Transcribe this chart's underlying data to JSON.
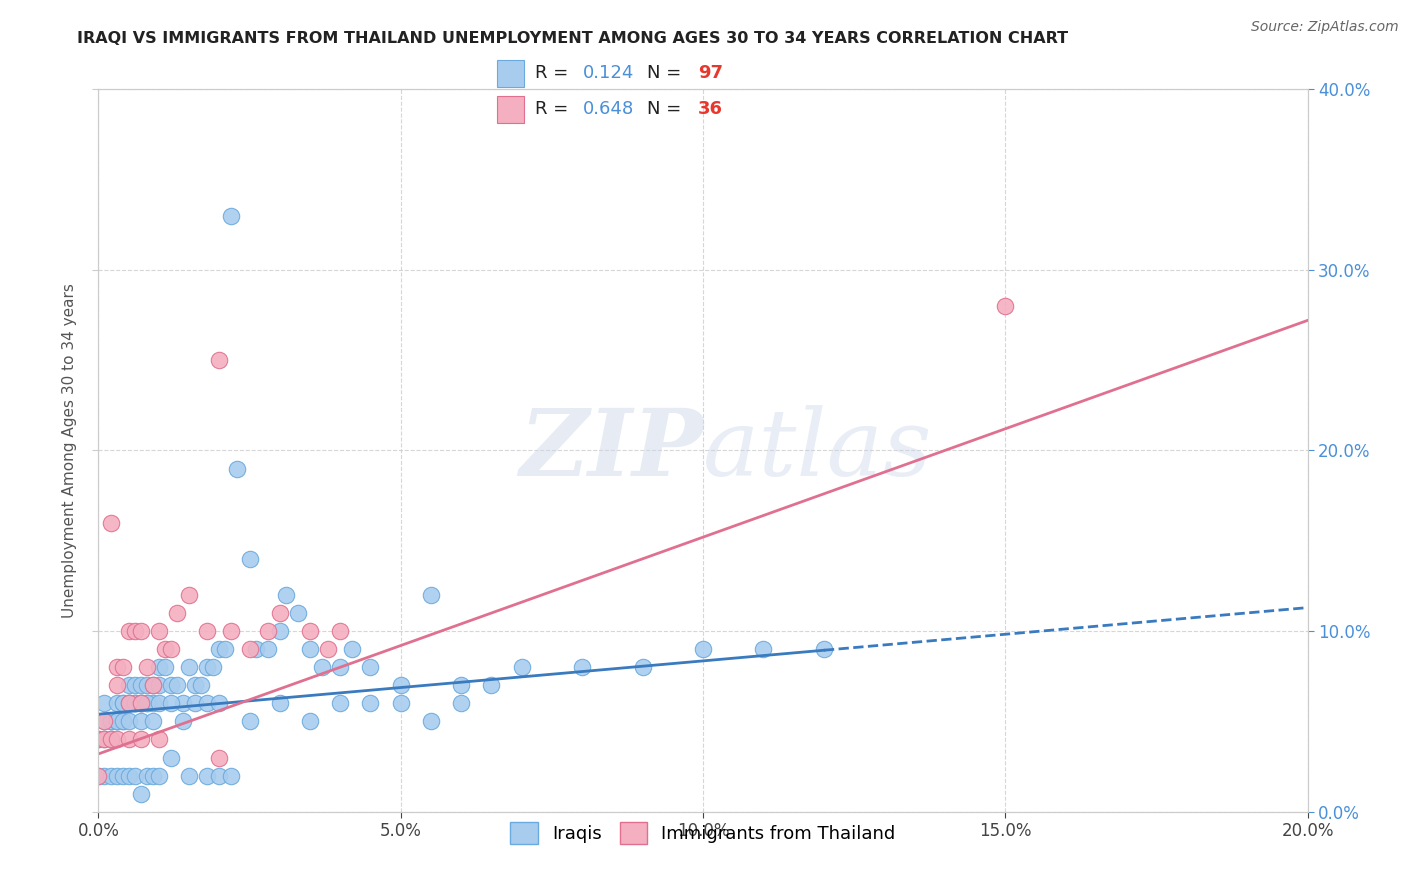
{
  "title": "IRAQI VS IMMIGRANTS FROM THAILAND UNEMPLOYMENT AMONG AGES 30 TO 34 YEARS CORRELATION CHART",
  "source": "Source: ZipAtlas.com",
  "ylabel": "Unemployment Among Ages 30 to 34 years",
  "xlim": [
    0,
    0.2
  ],
  "ylim": [
    0,
    0.4
  ],
  "xticks": [
    0.0,
    0.05,
    0.1,
    0.15,
    0.2
  ],
  "yticks": [
    0.0,
    0.1,
    0.2,
    0.3,
    0.4
  ],
  "series": [
    {
      "name": "Iraqis",
      "color": "#a8ccee",
      "edge_color": "#6aaade",
      "R": 0.124,
      "N": 97,
      "trend_color": "#3a7abf",
      "trend_dashed": true,
      "trend_x0": 0.0,
      "trend_y0": 0.054,
      "trend_x1": 0.2,
      "trend_y1": 0.113,
      "trend_solid_end": 0.12,
      "x": [
        0.001,
        0.002,
        0.003,
        0.003,
        0.004,
        0.004,
        0.005,
        0.005,
        0.006,
        0.006,
        0.007,
        0.007,
        0.008,
        0.008,
        0.009,
        0.009,
        0.01,
        0.01,
        0.011,
        0.012,
        0.013,
        0.014,
        0.015,
        0.016,
        0.017,
        0.018,
        0.019,
        0.02,
        0.021,
        0.022,
        0.023,
        0.025,
        0.026,
        0.028,
        0.03,
        0.031,
        0.033,
        0.035,
        0.037,
        0.04,
        0.042,
        0.045,
        0.05,
        0.055,
        0.06,
        0.065,
        0.07,
        0.08,
        0.09,
        0.1,
        0.11,
        0.12,
        0.0,
        0.001,
        0.001,
        0.002,
        0.002,
        0.003,
        0.003,
        0.004,
        0.004,
        0.005,
        0.005,
        0.006,
        0.007,
        0.007,
        0.008,
        0.009,
        0.01,
        0.012,
        0.014,
        0.016,
        0.018,
        0.02,
        0.025,
        0.03,
        0.035,
        0.04,
        0.045,
        0.05,
        0.055,
        0.06,
        0.0,
        0.001,
        0.002,
        0.003,
        0.004,
        0.005,
        0.006,
        0.007,
        0.008,
        0.009,
        0.01,
        0.012,
        0.015,
        0.018,
        0.02,
        0.022
      ],
      "y": [
        0.06,
        0.05,
        0.06,
        0.05,
        0.06,
        0.05,
        0.07,
        0.06,
        0.07,
        0.06,
        0.07,
        0.06,
        0.07,
        0.06,
        0.07,
        0.06,
        0.08,
        0.07,
        0.08,
        0.07,
        0.07,
        0.06,
        0.08,
        0.07,
        0.07,
        0.08,
        0.08,
        0.09,
        0.09,
        0.33,
        0.19,
        0.14,
        0.09,
        0.09,
        0.1,
        0.12,
        0.11,
        0.09,
        0.08,
        0.08,
        0.09,
        0.08,
        0.07,
        0.12,
        0.07,
        0.07,
        0.08,
        0.08,
        0.08,
        0.09,
        0.09,
        0.09,
        0.04,
        0.04,
        0.05,
        0.05,
        0.04,
        0.05,
        0.05,
        0.06,
        0.05,
        0.06,
        0.05,
        0.06,
        0.05,
        0.06,
        0.06,
        0.05,
        0.06,
        0.06,
        0.05,
        0.06,
        0.06,
        0.06,
        0.05,
        0.06,
        0.05,
        0.06,
        0.06,
        0.06,
        0.05,
        0.06,
        0.02,
        0.02,
        0.02,
        0.02,
        0.02,
        0.02,
        0.02,
        0.01,
        0.02,
        0.02,
        0.02,
        0.03,
        0.02,
        0.02,
        0.02,
        0.02
      ]
    },
    {
      "name": "Immigrants from Thailand",
      "color": "#f4afc0",
      "edge_color": "#e07090",
      "R": 0.648,
      "N": 36,
      "trend_color": "#e07090",
      "trend_dashed": false,
      "trend_x0": 0.0,
      "trend_y0": 0.032,
      "trend_x1": 0.2,
      "trend_y1": 0.272,
      "x": [
        0.0,
        0.001,
        0.002,
        0.003,
        0.003,
        0.004,
        0.005,
        0.005,
        0.006,
        0.007,
        0.007,
        0.008,
        0.009,
        0.01,
        0.011,
        0.012,
        0.013,
        0.015,
        0.018,
        0.02,
        0.022,
        0.025,
        0.028,
        0.03,
        0.035,
        0.038,
        0.04,
        0.15,
        0.0,
        0.001,
        0.002,
        0.003,
        0.005,
        0.007,
        0.01,
        0.02
      ],
      "y": [
        0.04,
        0.05,
        0.16,
        0.08,
        0.07,
        0.08,
        0.1,
        0.06,
        0.1,
        0.1,
        0.06,
        0.08,
        0.07,
        0.1,
        0.09,
        0.09,
        0.11,
        0.12,
        0.1,
        0.25,
        0.1,
        0.09,
        0.1,
        0.11,
        0.1,
        0.09,
        0.1,
        0.28,
        0.02,
        0.04,
        0.04,
        0.04,
        0.04,
        0.04,
        0.04,
        0.03
      ]
    }
  ],
  "watermark_zip": "ZIP",
  "watermark_atlas": "atlas",
  "background_color": "#ffffff",
  "grid_color": "#cccccc",
  "title_fontsize": 11.5,
  "tick_fontsize": 12,
  "ylabel_fontsize": 11,
  "marker_size": 140
}
